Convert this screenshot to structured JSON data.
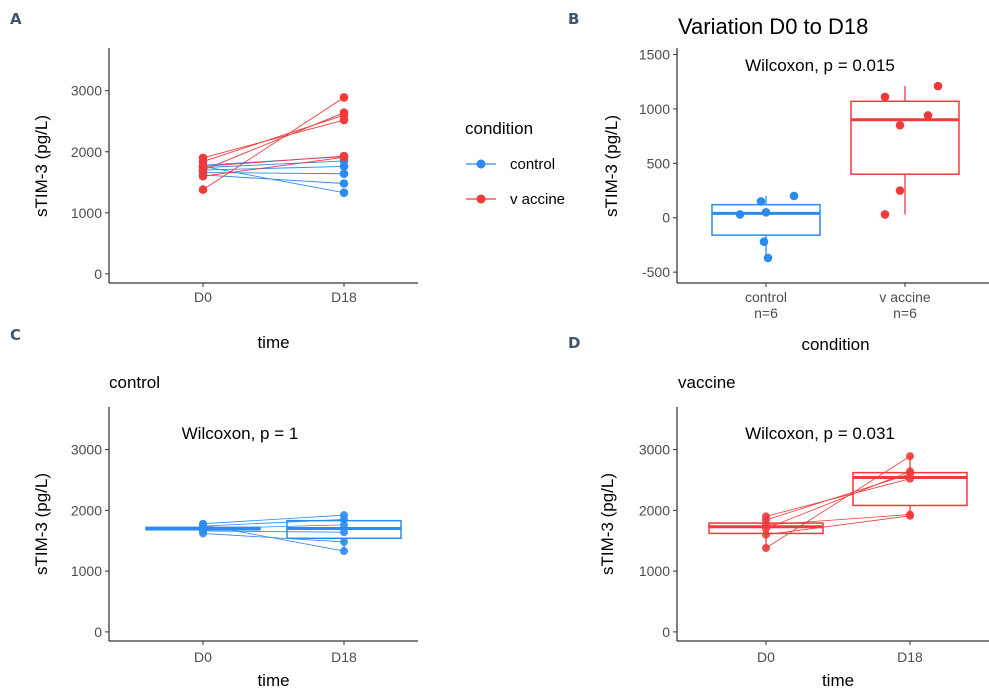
{
  "panels": {
    "A": {
      "letter": "A"
    },
    "B": {
      "letter": "B",
      "title": "Variation D0 to D18"
    },
    "C": {
      "letter": "C",
      "title": "control"
    },
    "D": {
      "letter": "D",
      "title": "vaccine"
    }
  },
  "legend": {
    "title": "condition",
    "items": [
      {
        "label": "control",
        "color": "#2b8cf0"
      },
      {
        "label": "v accine",
        "color": "#f03a3a"
      }
    ]
  },
  "colors": {
    "control": "#2b8cf0",
    "vaccine": "#f03a3a"
  },
  "chart_data": [
    {
      "id": "A",
      "type": "line",
      "xlabel": "time",
      "ylabel": "sTIM-3 (pg/L)",
      "categories": [
        "D0",
        "D18"
      ],
      "ylim": [
        -150,
        3700
      ],
      "yticks": [
        0,
        1000,
        2000,
        3000
      ],
      "grid": false,
      "series": [
        {
          "group": "control",
          "values": [
            1780,
            1920
          ]
        },
        {
          "group": "control",
          "values": [
            1740,
            1850
          ]
        },
        {
          "group": "control",
          "values": [
            1700,
            1760
          ]
        },
        {
          "group": "control",
          "values": [
            1660,
            1640
          ]
        },
        {
          "group": "control",
          "values": [
            1620,
            1480
          ]
        },
        {
          "group": "control",
          "values": [
            1760,
            1330
          ]
        },
        {
          "group": "vaccine",
          "values": [
            1900,
            2520
          ]
        },
        {
          "group": "vaccine",
          "values": [
            1840,
            2600
          ]
        },
        {
          "group": "vaccine",
          "values": [
            1700,
            2640
          ]
        },
        {
          "group": "vaccine",
          "values": [
            1380,
            2890
          ]
        },
        {
          "group": "vaccine",
          "values": [
            1760,
            1930
          ]
        },
        {
          "group": "vaccine",
          "values": [
            1600,
            1910
          ]
        }
      ]
    },
    {
      "id": "B",
      "type": "box",
      "title": "Variation D0 to D18",
      "annotation": "Wilcoxon, p = 0.015",
      "xlabel": "condition",
      "ylabel": "sTIM-3 (pg/L)",
      "categories": [
        "control",
        "v accine"
      ],
      "category_counts": [
        "n=6",
        "n=6"
      ],
      "ylim": [
        -600,
        1560
      ],
      "yticks": [
        -500,
        0,
        500,
        1000,
        1500
      ],
      "grid": false,
      "boxes": [
        {
          "group": "control",
          "min": -370,
          "q1": -160,
          "median": 40,
          "q3": 120,
          "max": 200,
          "points": [
            150,
            30,
            200,
            50,
            -220,
            -370
          ]
        },
        {
          "group": "vaccine",
          "min": 30,
          "q1": 400,
          "median": 900,
          "q3": 1070,
          "max": 1210,
          "points": [
            1110,
            850,
            1210,
            940,
            250,
            30
          ]
        }
      ]
    },
    {
      "id": "C",
      "type": "box",
      "title": "control",
      "annotation": "Wilcoxon, p = 1",
      "xlabel": "time",
      "ylabel": "sTIM-3 (pg/L)",
      "categories": [
        "D0",
        "D18"
      ],
      "ylim": [
        -150,
        3700
      ],
      "yticks": [
        0,
        1000,
        2000,
        3000
      ],
      "grid": false,
      "boxes": [
        {
          "group": "control",
          "min": 1620,
          "q1": 1680,
          "median": 1700,
          "q3": 1720,
          "max": 1780
        },
        {
          "group": "control",
          "min": 1330,
          "q1": 1540,
          "median": 1700,
          "q3": 1830,
          "max": 1920
        }
      ],
      "pairs": [
        [
          1780,
          1920
        ],
        [
          1740,
          1850
        ],
        [
          1700,
          1760
        ],
        [
          1660,
          1640
        ],
        [
          1620,
          1480
        ],
        [
          1760,
          1330
        ]
      ]
    },
    {
      "id": "D",
      "type": "box",
      "title": "vaccine",
      "annotation": "Wilcoxon, p = 0.031",
      "xlabel": "time",
      "ylabel": "sTIM-3 (pg/L)",
      "categories": [
        "D0",
        "D18"
      ],
      "ylim": [
        -150,
        3700
      ],
      "yticks": [
        0,
        1000,
        2000,
        3000
      ],
      "grid": false,
      "boxes": [
        {
          "group": "vaccine",
          "min": 1380,
          "q1": 1620,
          "median": 1730,
          "q3": 1790,
          "max": 1900
        },
        {
          "group": "vaccine",
          "min": 1910,
          "q1": 2080,
          "median": 2540,
          "q3": 2620,
          "max": 2890
        }
      ],
      "pairs": [
        [
          1900,
          2520
        ],
        [
          1840,
          2600
        ],
        [
          1700,
          2640
        ],
        [
          1380,
          2890
        ],
        [
          1760,
          1930
        ],
        [
          1600,
          1910
        ]
      ]
    }
  ]
}
